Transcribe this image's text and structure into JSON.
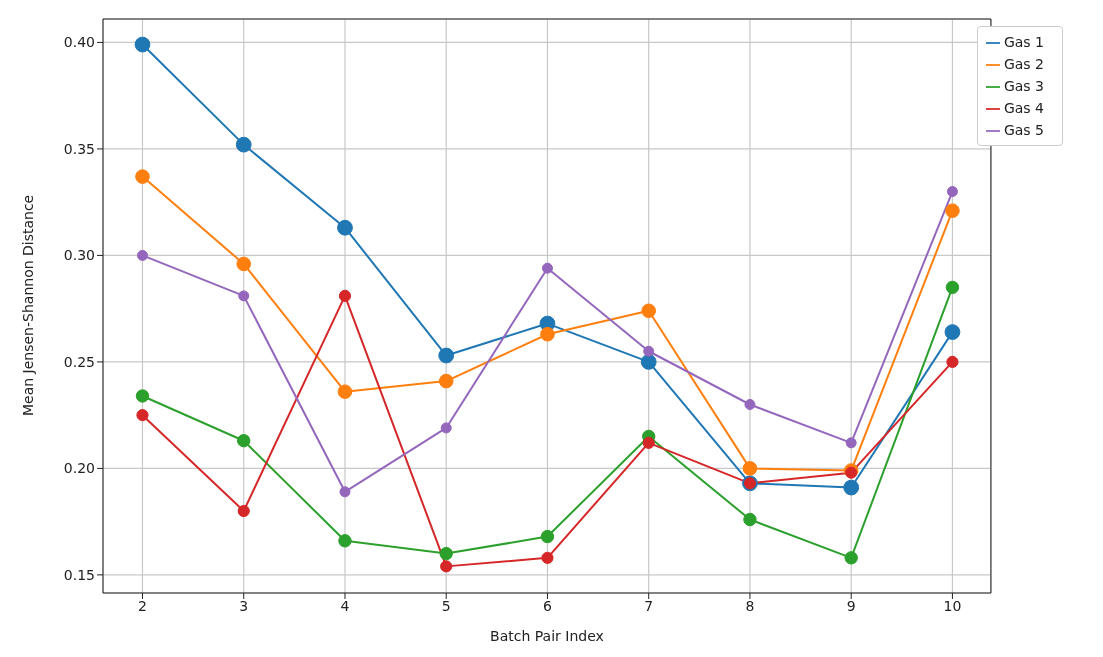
{
  "chart_data": {
    "type": "line",
    "xlabel": "Batch Pair Index",
    "ylabel": "Mean Jensen-Shannon Distance",
    "x": [
      2,
      3,
      4,
      5,
      6,
      7,
      8,
      9,
      10
    ],
    "xlim": [
      1.61,
      10.38
    ],
    "xticks": [
      2,
      3,
      4,
      5,
      6,
      7,
      8,
      9,
      10
    ],
    "ylim": [
      0.1415,
      0.411
    ],
    "yticks": [
      0.15,
      {
        "value": 0.2,
        "label": "0.20"
      },
      0.25,
      {
        "value": 0.3,
        "label": "0.30"
      },
      0.35,
      {
        "value": 0.4,
        "label": "0.40"
      }
    ],
    "grid": true,
    "legend": "top right",
    "marker": "circle",
    "line_style": "solid",
    "series": [
      {
        "name": "Gas 1",
        "color": "#1f77b4",
        "values": [
          0.399,
          0.352,
          0.313,
          0.253,
          0.268,
          0.25,
          0.193,
          0.191,
          0.264
        ]
      },
      {
        "name": "Gas 2",
        "color": "#ff7f0e",
        "values": [
          0.337,
          0.296,
          0.236,
          0.241,
          0.263,
          0.274,
          0.2,
          0.199,
          0.321
        ]
      },
      {
        "name": "Gas 3",
        "color": "#2ca02c",
        "values": [
          0.234,
          0.213,
          0.166,
          0.16,
          0.168,
          0.215,
          0.176,
          0.158,
          0.285
        ]
      },
      {
        "name": "Gas 4",
        "color": "#d62728",
        "values": [
          0.225,
          0.18,
          0.281,
          0.154,
          0.158,
          0.212,
          0.193,
          0.198,
          0.25
        ]
      },
      {
        "name": "Gas 5",
        "color": "#9467bd",
        "values": [
          0.3,
          0.281,
          0.189,
          0.219,
          0.294,
          0.255,
          0.23,
          0.212,
          0.33
        ]
      }
    ]
  }
}
